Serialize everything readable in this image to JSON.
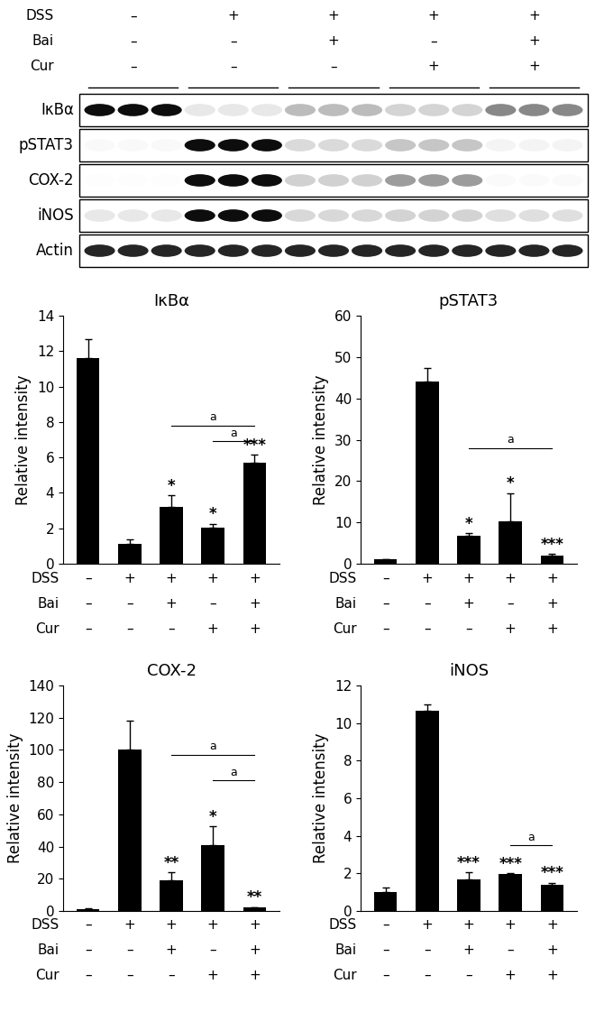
{
  "conditions": [
    {
      "name": "DSS",
      "values": [
        "–",
        "+",
        "+",
        "+",
        "+"
      ]
    },
    {
      "name": "Bai",
      "values": [
        "–",
        "–",
        "+",
        "–",
        "+"
      ]
    },
    {
      "name": "Cur",
      "values": [
        "–",
        "–",
        "–",
        "+",
        "+"
      ]
    }
  ],
  "blot": {
    "proteins": [
      "IκBα",
      "pSTAT3",
      "COX-2",
      "iNOS",
      "Actin"
    ]
  },
  "chart_data": [
    {
      "type": "bar",
      "title": "IκBα",
      "y_label": "Relative intensity",
      "color": "#000000",
      "values": [
        11.6,
        1.1,
        3.2,
        2.05,
        5.7
      ],
      "errors": [
        1.1,
        0.25,
        0.65,
        0.2,
        0.45
      ],
      "significance": [
        null,
        null,
        "*",
        "*",
        "***"
      ],
      "comparisons": [
        {
          "from": 2,
          "to": 4,
          "y": 7.8,
          "label": "a"
        },
        {
          "from": 3,
          "to": 4,
          "y": 6.9,
          "label": "a"
        }
      ],
      "ylim": [
        0,
        14
      ],
      "yticks": [
        0,
        2,
        4,
        6,
        8,
        10,
        12,
        14
      ]
    },
    {
      "type": "bar",
      "title": "pSTAT3",
      "y_label": "Relative intensity",
      "color": "#000000",
      "values": [
        1,
        44,
        6.8,
        10.3,
        2
      ],
      "errors": [
        0,
        3.3,
        0.6,
        6.8,
        0.4
      ],
      "significance": [
        null,
        null,
        "*",
        "*",
        "***"
      ],
      "comparisons": [
        {
          "from": 2,
          "to": 4,
          "y": 28,
          "label": "a"
        }
      ],
      "ylim": [
        0,
        60
      ],
      "yticks": [
        0,
        10,
        20,
        30,
        40,
        50,
        60
      ]
    },
    {
      "type": "bar",
      "title": "COX-2",
      "y_label": "Relative intensity",
      "color": "#000000",
      "values": [
        1,
        100,
        19,
        41,
        2
      ],
      "errors": [
        0.5,
        18,
        5,
        11.5,
        0.5
      ],
      "significance": [
        null,
        null,
        "**",
        "*",
        "**"
      ],
      "comparisons": [
        {
          "from": 2,
          "to": 4,
          "y": 97,
          "label": "a"
        },
        {
          "from": 3,
          "to": 4,
          "y": 81,
          "label": "a"
        }
      ],
      "ylim": [
        0,
        140
      ],
      "yticks": [
        0,
        20,
        40,
        60,
        80,
        100,
        120,
        140
      ]
    },
    {
      "type": "bar",
      "title": "iNOS",
      "y_label": "Relative intensity",
      "color": "#000000",
      "values": [
        1,
        10.65,
        1.7,
        1.95,
        1.4
      ],
      "errors": [
        0.25,
        0.35,
        0.35,
        0.05,
        0.1
      ],
      "significance": [
        null,
        null,
        "***",
        "***",
        "***"
      ],
      "comparisons": [
        {
          "from": 3,
          "to": 4,
          "y": 3.5,
          "label": "a"
        }
      ],
      "ylim": [
        0,
        12
      ],
      "yticks": [
        0,
        2,
        4,
        6,
        8,
        10,
        12
      ]
    }
  ]
}
